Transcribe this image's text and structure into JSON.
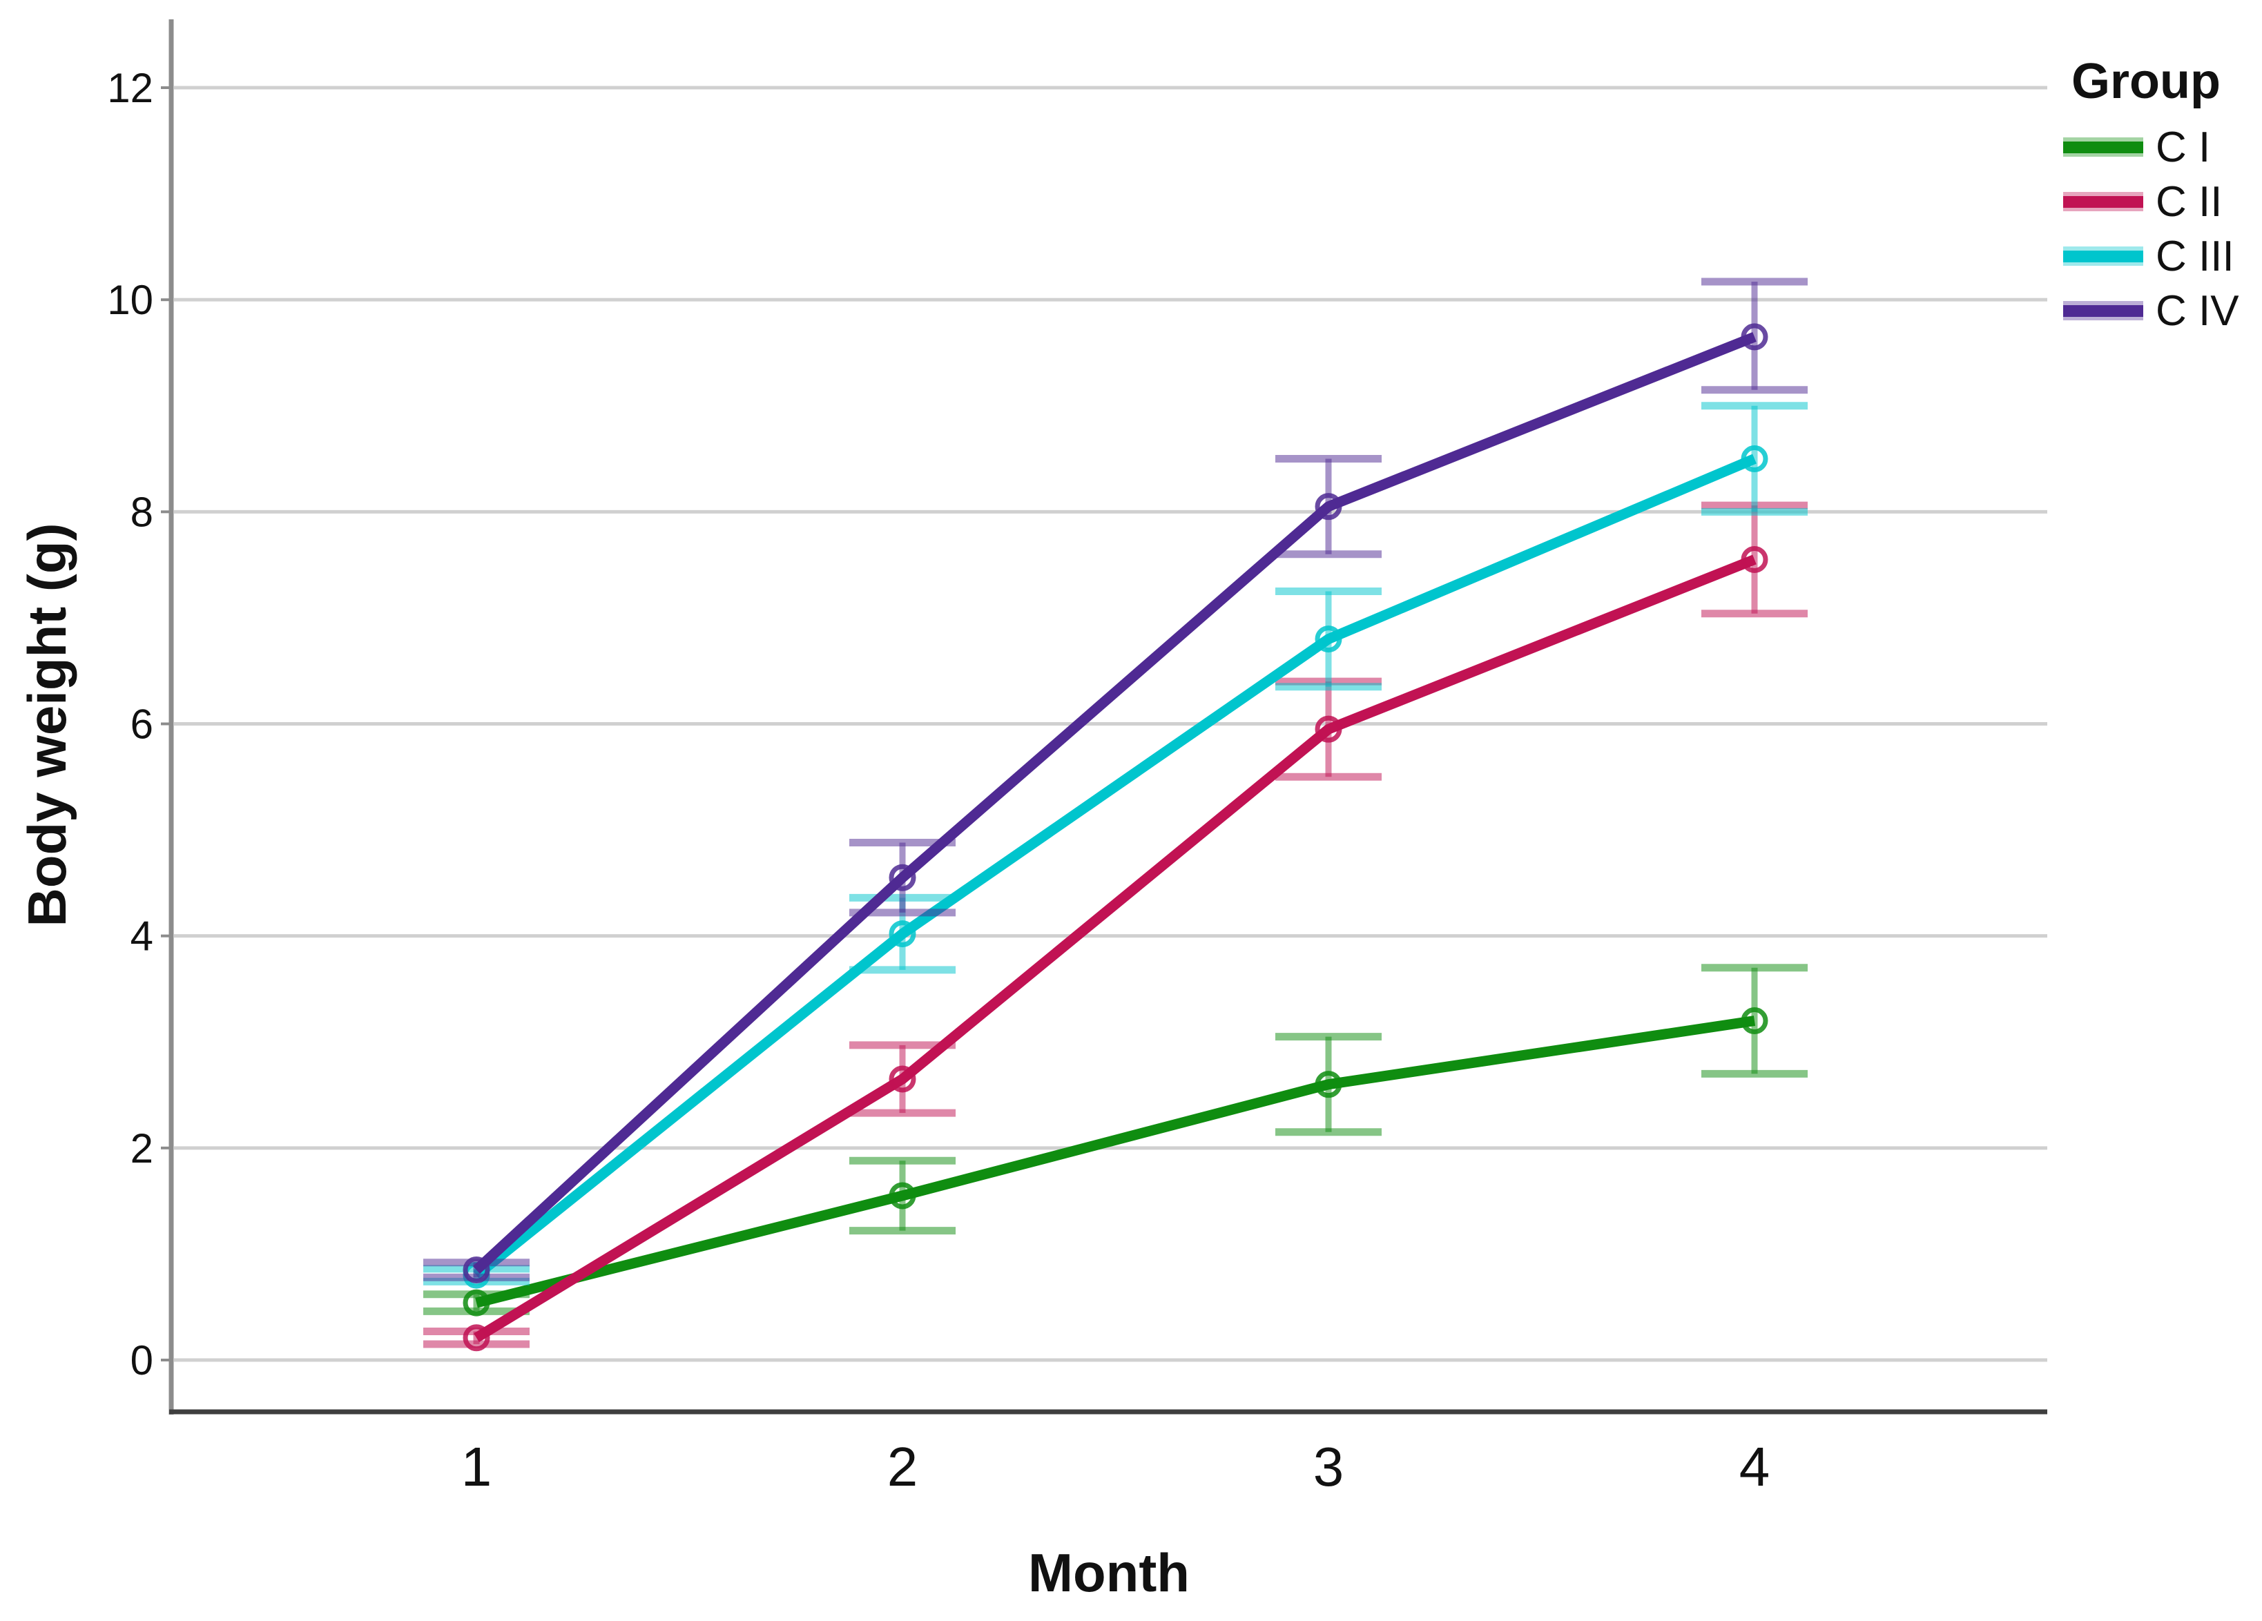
{
  "chart_data": {
    "type": "line",
    "title": "",
    "xlabel": "Month",
    "ylabel": "Body weight (g)",
    "x": [
      1,
      2,
      3,
      4
    ],
    "x_tick_labels": [
      "1",
      "2",
      "3",
      "4"
    ],
    "yticks": [
      0,
      2,
      4,
      6,
      8,
      10,
      12
    ],
    "ylim": [
      -0.5,
      12.6
    ],
    "xlim": [
      0.28,
      4.6
    ],
    "grid": "horizontal-only",
    "marker": "open-circle",
    "error_bars": true,
    "legend_title": "Group",
    "legend_position": "top-right",
    "series": [
      {
        "name": "C I",
        "color": "#0f8d10",
        "values": [
          0.54,
          1.55,
          2.6,
          3.2
        ],
        "err_low": [
          0.46,
          1.22,
          2.15,
          2.7
        ],
        "err_high": [
          0.62,
          1.88,
          3.05,
          3.7
        ]
      },
      {
        "name": "C II",
        "color": "#c11253",
        "values": [
          0.21,
          2.65,
          5.95,
          7.55
        ],
        "err_low": [
          0.15,
          2.33,
          5.5,
          7.04
        ],
        "err_high": [
          0.27,
          2.97,
          6.4,
          8.06
        ]
      },
      {
        "name": "C III",
        "color": "#00c5cd",
        "values": [
          0.8,
          4.02,
          6.8,
          8.5
        ],
        "err_low": [
          0.74,
          3.68,
          6.35,
          8.0
        ],
        "err_high": [
          0.86,
          4.36,
          7.25,
          9.0
        ]
      },
      {
        "name": "C IV",
        "color": "#4f2a93",
        "values": [
          0.85,
          4.55,
          8.05,
          9.65
        ],
        "err_low": [
          0.78,
          4.22,
          7.6,
          9.15
        ],
        "err_high": [
          0.92,
          4.88,
          8.5,
          10.17
        ]
      }
    ],
    "axis_colors": {
      "y_spine": "#8c8c8c",
      "x_spine": "#3f3f3f",
      "gridline": "#d0d0d0"
    }
  }
}
